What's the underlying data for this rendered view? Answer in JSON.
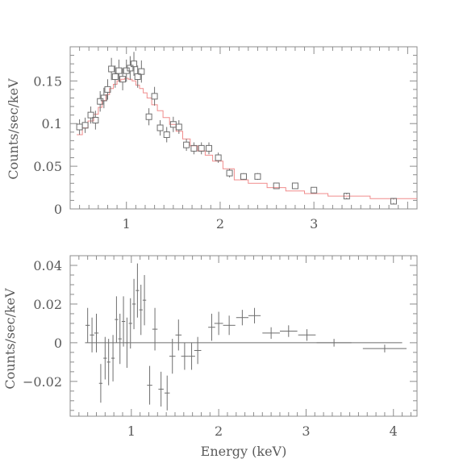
{
  "chart_data": [
    {
      "type": "scatter",
      "title": "",
      "xlabel": "",
      "ylabel": "Counts/sec/keV",
      "xlim": [
        0.4,
        4.1
      ],
      "ylim": [
        0,
        0.19
      ],
      "xticks": [
        1,
        2,
        3
      ],
      "xtick_labels": [
        "1",
        "2",
        "3"
      ],
      "yticks": [
        0,
        0.05,
        0.1,
        0.15
      ],
      "ytick_labels": [
        "0",
        "0.05",
        "0.1",
        "0.15"
      ],
      "series": [
        {
          "kind": "data",
          "marker": "square",
          "points": [
            {
              "x": 0.5,
              "y": 0.096,
              "err": 0.009
            },
            {
              "x": 0.56,
              "y": 0.098,
              "err": 0.009
            },
            {
              "x": 0.62,
              "y": 0.11,
              "err": 0.01
            },
            {
              "x": 0.67,
              "y": 0.104,
              "err": 0.011
            },
            {
              "x": 0.72,
              "y": 0.126,
              "err": 0.012
            },
            {
              "x": 0.76,
              "y": 0.13,
              "err": 0.012
            },
            {
              "x": 0.8,
              "y": 0.14,
              "err": 0.012
            },
            {
              "x": 0.84,
              "y": 0.164,
              "err": 0.013
            },
            {
              "x": 0.88,
              "y": 0.155,
              "err": 0.013
            },
            {
              "x": 0.92,
              "y": 0.162,
              "err": 0.013
            },
            {
              "x": 0.96,
              "y": 0.152,
              "err": 0.013
            },
            {
              "x": 1.0,
              "y": 0.162,
              "err": 0.013
            },
            {
              "x": 1.04,
              "y": 0.165,
              "err": 0.014
            },
            {
              "x": 1.08,
              "y": 0.17,
              "err": 0.014
            },
            {
              "x": 1.12,
              "y": 0.155,
              "err": 0.013
            },
            {
              "x": 1.16,
              "y": 0.161,
              "err": 0.013
            },
            {
              "x": 1.24,
              "y": 0.108,
              "err": 0.01
            },
            {
              "x": 1.3,
              "y": 0.132,
              "err": 0.011
            },
            {
              "x": 1.36,
              "y": 0.095,
              "err": 0.009
            },
            {
              "x": 1.43,
              "y": 0.087,
              "err": 0.009
            },
            {
              "x": 1.5,
              "y": 0.099,
              "err": 0.009
            },
            {
              "x": 1.56,
              "y": 0.096,
              "err": 0.008
            },
            {
              "x": 1.64,
              "y": 0.075,
              "err": 0.007
            },
            {
              "x": 1.72,
              "y": 0.071,
              "err": 0.007
            },
            {
              "x": 1.8,
              "y": 0.071,
              "err": 0.007
            },
            {
              "x": 1.88,
              "y": 0.071,
              "err": 0.007
            },
            {
              "x": 1.98,
              "y": 0.06,
              "err": 0.006
            },
            {
              "x": 2.1,
              "y": 0.042,
              "err": 0.005
            },
            {
              "x": 2.25,
              "y": 0.038,
              "err": 0.004
            },
            {
              "x": 2.4,
              "y": 0.038,
              "err": 0.004
            },
            {
              "x": 2.6,
              "y": 0.027,
              "err": 0.003
            },
            {
              "x": 2.8,
              "y": 0.027,
              "err": 0.003
            },
            {
              "x": 3.0,
              "y": 0.022,
              "err": 0.003
            },
            {
              "x": 3.35,
              "y": 0.015,
              "err": 0.002
            },
            {
              "x": 3.85,
              "y": 0.009,
              "err": 0.002
            }
          ]
        },
        {
          "kind": "model",
          "style": "step",
          "color": "#f08c8c",
          "edges": [
            0.47,
            0.53,
            0.59,
            0.65,
            0.7,
            0.74,
            0.78,
            0.82,
            0.86,
            0.9,
            0.94,
            0.98,
            1.02,
            1.06,
            1.1,
            1.14,
            1.18,
            1.22,
            1.27,
            1.33,
            1.39,
            1.46,
            1.53,
            1.6,
            1.68,
            1.76,
            1.84,
            1.92,
            2.03,
            2.15,
            2.3,
            2.5,
            2.7,
            2.9,
            3.15,
            3.6,
            4.1
          ],
          "values": [
            0.087,
            0.095,
            0.103,
            0.111,
            0.119,
            0.127,
            0.134,
            0.141,
            0.146,
            0.15,
            0.152,
            0.153,
            0.152,
            0.15,
            0.145,
            0.141,
            0.136,
            0.13,
            0.122,
            0.115,
            0.107,
            0.099,
            0.091,
            0.082,
            0.074,
            0.068,
            0.063,
            0.056,
            0.047,
            0.034,
            0.03,
            0.025,
            0.021,
            0.018,
            0.015,
            0.012
          ]
        }
      ]
    },
    {
      "type": "scatter",
      "title": "",
      "xlabel": "Energy (keV)",
      "ylabel": "Counts/sec/keV",
      "xlim": [
        0.3,
        4.27
      ],
      "ylim": [
        -0.038,
        0.045
      ],
      "xticks": [
        1,
        2,
        3,
        4
      ],
      "xtick_labels": [
        "1",
        "2",
        "3",
        "4"
      ],
      "yticks": [
        -0.02,
        0,
        0.02,
        0.04
      ],
      "ytick_labels": [
        "−0.02",
        "0",
        "0.02",
        "0.04"
      ],
      "zero_line": [
        0.5,
        3.85
      ],
      "model_line": [
        0.47,
        4.1
      ],
      "series": [
        {
          "kind": "residuals",
          "marker": "cross",
          "points": [
            {
              "x": 0.5,
              "y": 0.009,
              "xerr": 0.025,
              "yerr": 0.009
            },
            {
              "x": 0.55,
              "y": 0.004,
              "xerr": 0.025,
              "yerr": 0.009
            },
            {
              "x": 0.6,
              "y": 0.005,
              "xerr": 0.025,
              "yerr": 0.01
            },
            {
              "x": 0.65,
              "y": -0.021,
              "xerr": 0.02,
              "yerr": 0.01
            },
            {
              "x": 0.7,
              "y": -0.008,
              "xerr": 0.02,
              "yerr": 0.011
            },
            {
              "x": 0.74,
              "y": -0.01,
              "xerr": 0.02,
              "yerr": 0.012
            },
            {
              "x": 0.79,
              "y": -0.008,
              "xerr": 0.02,
              "yerr": 0.012
            },
            {
              "x": 0.83,
              "y": 0.012,
              "xerr": 0.02,
              "yerr": 0.012
            },
            {
              "x": 0.87,
              "y": 0.002,
              "xerr": 0.02,
              "yerr": 0.013
            },
            {
              "x": 0.91,
              "y": 0.011,
              "xerr": 0.02,
              "yerr": 0.013
            },
            {
              "x": 0.95,
              "y": 0.0,
              "xerr": 0.02,
              "yerr": 0.013
            },
            {
              "x": 0.99,
              "y": 0.01,
              "xerr": 0.02,
              "yerr": 0.013
            },
            {
              "x": 1.03,
              "y": 0.02,
              "xerr": 0.02,
              "yerr": 0.013
            },
            {
              "x": 1.07,
              "y": 0.027,
              "xerr": 0.02,
              "yerr": 0.014
            },
            {
              "x": 1.11,
              "y": 0.017,
              "xerr": 0.02,
              "yerr": 0.013
            },
            {
              "x": 1.15,
              "y": 0.022,
              "xerr": 0.02,
              "yerr": 0.013
            },
            {
              "x": 1.21,
              "y": -0.022,
              "xerr": 0.03,
              "yerr": 0.01
            },
            {
              "x": 1.27,
              "y": 0.007,
              "xerr": 0.03,
              "yerr": 0.011
            },
            {
              "x": 1.34,
              "y": -0.024,
              "xerr": 0.03,
              "yerr": 0.009
            },
            {
              "x": 1.41,
              "y": -0.026,
              "xerr": 0.03,
              "yerr": 0.009
            },
            {
              "x": 1.47,
              "y": -0.007,
              "xerr": 0.035,
              "yerr": 0.009
            },
            {
              "x": 1.54,
              "y": 0.004,
              "xerr": 0.035,
              "yerr": 0.008
            },
            {
              "x": 1.61,
              "y": -0.007,
              "xerr": 0.04,
              "yerr": 0.007
            },
            {
              "x": 1.69,
              "y": -0.007,
              "xerr": 0.04,
              "yerr": 0.007
            },
            {
              "x": 1.76,
              "y": -0.004,
              "xerr": 0.04,
              "yerr": 0.007
            },
            {
              "x": 1.92,
              "y": 0.008,
              "xerr": 0.04,
              "yerr": 0.007
            },
            {
              "x": 2.0,
              "y": 0.01,
              "xerr": 0.05,
              "yerr": 0.006
            },
            {
              "x": 2.12,
              "y": 0.009,
              "xerr": 0.07,
              "yerr": 0.005
            },
            {
              "x": 2.27,
              "y": 0.013,
              "xerr": 0.07,
              "yerr": 0.004
            },
            {
              "x": 2.41,
              "y": 0.014,
              "xerr": 0.07,
              "yerr": 0.004
            },
            {
              "x": 2.6,
              "y": 0.005,
              "xerr": 0.1,
              "yerr": 0.003
            },
            {
              "x": 2.8,
              "y": 0.006,
              "xerr": 0.1,
              "yerr": 0.003
            },
            {
              "x": 3.01,
              "y": 0.004,
              "xerr": 0.1,
              "yerr": 0.003
            },
            {
              "x": 3.32,
              "y": 0.0,
              "xerr": 0.2,
              "yerr": 0.002
            },
            {
              "x": 3.9,
              "y": -0.003,
              "xerr": 0.25,
              "yerr": 0.002
            }
          ]
        }
      ]
    }
  ]
}
